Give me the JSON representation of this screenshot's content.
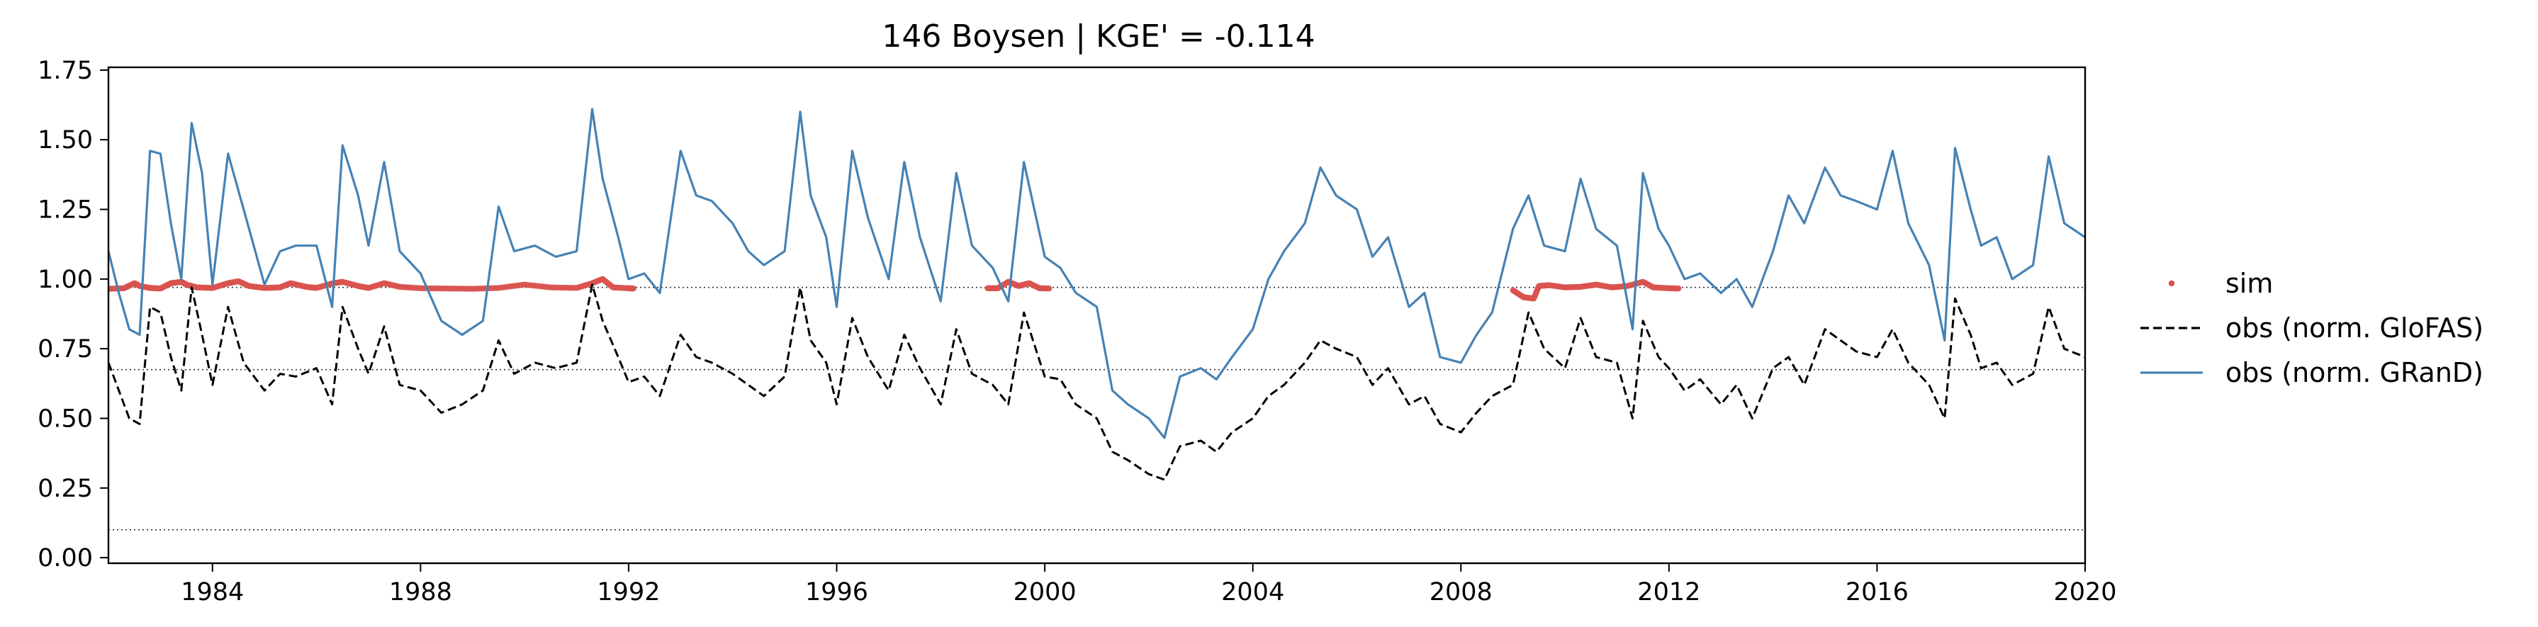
{
  "chart_data": {
    "type": "line",
    "title": "146  Boysen | KGE' = -0.114",
    "xlabel": "",
    "ylabel": "",
    "xlim": [
      1982.0,
      2020.0
    ],
    "ylim": [
      -0.02,
      1.76
    ],
    "x_ticks": [
      1984,
      1988,
      1992,
      1996,
      2000,
      2004,
      2008,
      2012,
      2016,
      2020
    ],
    "y_ticks": [
      0.0,
      0.25,
      0.5,
      0.75,
      1.0,
      1.25,
      1.5,
      1.75
    ],
    "y_tick_labels": [
      "0.00",
      "0.25",
      "0.50",
      "0.75",
      "1.00",
      "1.25",
      "1.50",
      "1.75"
    ],
    "grid": false,
    "legend_position": "right",
    "reference_lines": [
      0.97,
      0.675,
      0.1
    ],
    "series": [
      {
        "name": "sim",
        "kind": "scatter",
        "color": "#d9534f",
        "segments": [
          {
            "x": [
              1982.0,
              1982.3,
              1982.5,
              1982.6,
              1982.8,
              1983.0,
              1983.2,
              1983.4,
              1983.5,
              1983.7,
              1984.0,
              1984.3,
              1984.5,
              1984.7,
              1985.0,
              1985.3,
              1985.5,
              1985.8,
              1986.0,
              1986.3,
              1986.5,
              1986.8,
              1987.0,
              1987.3,
              1987.6,
              1988.0,
              1988.5,
              1989.0,
              1989.5,
              1990.0,
              1990.5,
              1991.0,
              1991.3,
              1991.5,
              1991.7,
              1992.0,
              1992.1
            ],
            "y": [
              0.965,
              0.967,
              0.985,
              0.975,
              0.968,
              0.966,
              0.985,
              0.99,
              0.98,
              0.97,
              0.968,
              0.985,
              0.992,
              0.975,
              0.968,
              0.97,
              0.985,
              0.972,
              0.968,
              0.984,
              0.99,
              0.975,
              0.968,
              0.985,
              0.972,
              0.967,
              0.966,
              0.965,
              0.968,
              0.98,
              0.97,
              0.968,
              0.985,
              1.0,
              0.97,
              0.967,
              0.966
            ]
          },
          {
            "x": [
              1998.9,
              1999.1,
              1999.3,
              1999.5,
              1999.7,
              1999.9,
              2000.1
            ],
            "y": [
              0.967,
              0.967,
              0.99,
              0.975,
              0.985,
              0.967,
              0.966
            ]
          },
          {
            "x": [
              2009.0,
              2009.2,
              2009.4,
              2009.5,
              2009.7,
              2010.0,
              2010.3,
              2010.6,
              2010.9,
              2011.2,
              2011.5,
              2011.7,
              2012.0,
              2012.2
            ],
            "y": [
              0.96,
              0.935,
              0.93,
              0.975,
              0.978,
              0.97,
              0.972,
              0.98,
              0.97,
              0.975,
              0.99,
              0.97,
              0.967,
              0.966
            ]
          }
        ]
      },
      {
        "name": "obs (norm. GloFAS)",
        "kind": "dashed-line",
        "color": "#000000",
        "x": [
          1982.0,
          1982.2,
          1982.4,
          1982.6,
          1982.8,
          1983.0,
          1983.2,
          1983.4,
          1983.6,
          1983.8,
          1984.0,
          1984.3,
          1984.6,
          1985.0,
          1985.3,
          1985.6,
          1986.0,
          1986.3,
          1986.5,
          1986.8,
          1987.0,
          1987.3,
          1987.6,
          1988.0,
          1988.4,
          1988.8,
          1989.2,
          1989.5,
          1989.8,
          1990.2,
          1990.6,
          1991.0,
          1991.3,
          1991.5,
          1991.8,
          1992.0,
          1992.3,
          1992.6,
          1993.0,
          1993.3,
          1993.6,
          1994.0,
          1994.3,
          1994.6,
          1995.0,
          1995.3,
          1995.5,
          1995.8,
          1996.0,
          1996.3,
          1996.6,
          1997.0,
          1997.3,
          1997.6,
          1998.0,
          1998.3,
          1998.6,
          1999.0,
          1999.3,
          1999.6,
          2000.0,
          2000.3,
          2000.6,
          2001.0,
          2001.3,
          2001.6,
          2002.0,
          2002.3,
          2002.6,
          2003.0,
          2003.3,
          2003.6,
          2004.0,
          2004.3,
          2004.6,
          2005.0,
          2005.3,
          2005.6,
          2006.0,
          2006.3,
          2006.6,
          2007.0,
          2007.3,
          2007.6,
          2008.0,
          2008.3,
          2008.6,
          2009.0,
          2009.3,
          2009.6,
          2010.0,
          2010.3,
          2010.6,
          2011.0,
          2011.3,
          2011.5,
          2011.8,
          2012.0,
          2012.3,
          2012.6,
          2013.0,
          2013.3,
          2013.6,
          2014.0,
          2014.3,
          2014.6,
          2015.0,
          2015.3,
          2015.6,
          2016.0,
          2016.3,
          2016.6,
          2017.0,
          2017.3,
          2017.5,
          2017.8,
          2018.0,
          2018.3,
          2018.6,
          2019.0,
          2019.3,
          2019.6,
          2020.0
        ],
        "y": [
          0.7,
          0.6,
          0.5,
          0.48,
          0.9,
          0.88,
          0.72,
          0.6,
          0.97,
          0.8,
          0.62,
          0.9,
          0.7,
          0.6,
          0.66,
          0.65,
          0.68,
          0.55,
          0.9,
          0.75,
          0.66,
          0.83,
          0.62,
          0.6,
          0.52,
          0.55,
          0.6,
          0.78,
          0.66,
          0.7,
          0.68,
          0.7,
          0.98,
          0.85,
          0.72,
          0.63,
          0.65,
          0.58,
          0.8,
          0.72,
          0.7,
          0.66,
          0.62,
          0.58,
          0.65,
          0.97,
          0.78,
          0.7,
          0.55,
          0.86,
          0.72,
          0.6,
          0.8,
          0.68,
          0.55,
          0.82,
          0.66,
          0.62,
          0.55,
          0.88,
          0.65,
          0.64,
          0.55,
          0.5,
          0.38,
          0.35,
          0.3,
          0.28,
          0.4,
          0.42,
          0.38,
          0.45,
          0.5,
          0.58,
          0.62,
          0.7,
          0.78,
          0.75,
          0.72,
          0.62,
          0.68,
          0.55,
          0.58,
          0.48,
          0.45,
          0.52,
          0.58,
          0.62,
          0.88,
          0.75,
          0.68,
          0.86,
          0.72,
          0.7,
          0.5,
          0.85,
          0.72,
          0.68,
          0.6,
          0.64,
          0.55,
          0.62,
          0.5,
          0.68,
          0.72,
          0.62,
          0.82,
          0.78,
          0.74,
          0.72,
          0.82,
          0.7,
          0.62,
          0.5,
          0.93,
          0.8,
          0.68,
          0.7,
          0.62,
          0.66,
          0.9,
          0.75,
          0.72
        ]
      },
      {
        "name": "obs (norm. GRanD)",
        "kind": "line",
        "color": "#4682b4",
        "x": [
          1982.0,
          1982.2,
          1982.4,
          1982.6,
          1982.8,
          1983.0,
          1983.2,
          1983.4,
          1983.6,
          1983.8,
          1984.0,
          1984.3,
          1984.6,
          1985.0,
          1985.3,
          1985.6,
          1986.0,
          1986.3,
          1986.5,
          1986.8,
          1987.0,
          1987.3,
          1987.6,
          1988.0,
          1988.4,
          1988.8,
          1989.2,
          1989.5,
          1989.8,
          1990.2,
          1990.6,
          1991.0,
          1991.3,
          1991.5,
          1991.8,
          1992.0,
          1992.3,
          1992.6,
          1993.0,
          1993.3,
          1993.6,
          1994.0,
          1994.3,
          1994.6,
          1995.0,
          1995.3,
          1995.5,
          1995.8,
          1996.0,
          1996.3,
          1996.6,
          1997.0,
          1997.3,
          1997.6,
          1998.0,
          1998.3,
          1998.6,
          1999.0,
          1999.3,
          1999.6,
          2000.0,
          2000.3,
          2000.6,
          2001.0,
          2001.3,
          2001.6,
          2002.0,
          2002.3,
          2002.6,
          2003.0,
          2003.3,
          2003.6,
          2004.0,
          2004.3,
          2004.6,
          2005.0,
          2005.3,
          2005.6,
          2006.0,
          2006.3,
          2006.6,
          2007.0,
          2007.3,
          2007.6,
          2008.0,
          2008.3,
          2008.6,
          2009.0,
          2009.3,
          2009.6,
          2010.0,
          2010.3,
          2010.6,
          2011.0,
          2011.3,
          2011.5,
          2011.8,
          2012.0,
          2012.3,
          2012.6,
          2013.0,
          2013.3,
          2013.6,
          2014.0,
          2014.3,
          2014.6,
          2015.0,
          2015.3,
          2015.6,
          2016.0,
          2016.3,
          2016.6,
          2017.0,
          2017.3,
          2017.5,
          2017.8,
          2018.0,
          2018.3,
          2018.6,
          2019.0,
          2019.3,
          2019.6,
          2020.0
        ],
        "y": [
          1.1,
          0.95,
          0.82,
          0.8,
          1.46,
          1.45,
          1.2,
          1.0,
          1.56,
          1.38,
          0.98,
          1.45,
          1.25,
          0.98,
          1.1,
          1.12,
          1.12,
          0.9,
          1.48,
          1.3,
          1.12,
          1.42,
          1.1,
          1.02,
          0.85,
          0.8,
          0.85,
          1.26,
          1.1,
          1.12,
          1.08,
          1.1,
          1.61,
          1.36,
          1.15,
          1.0,
          1.02,
          0.95,
          1.46,
          1.3,
          1.28,
          1.2,
          1.1,
          1.05,
          1.1,
          1.6,
          1.3,
          1.15,
          0.9,
          1.46,
          1.22,
          1.0,
          1.42,
          1.15,
          0.92,
          1.38,
          1.12,
          1.04,
          0.92,
          1.42,
          1.08,
          1.04,
          0.95,
          0.9,
          0.6,
          0.55,
          0.5,
          0.43,
          0.65,
          0.68,
          0.64,
          0.72,
          0.82,
          1.0,
          1.1,
          1.2,
          1.4,
          1.3,
          1.25,
          1.08,
          1.15,
          0.9,
          0.95,
          0.72,
          0.7,
          0.8,
          0.88,
          1.18,
          1.3,
          1.12,
          1.1,
          1.36,
          1.18,
          1.12,
          0.82,
          1.38,
          1.18,
          1.12,
          1.0,
          1.02,
          0.95,
          1.0,
          0.9,
          1.1,
          1.3,
          1.2,
          1.4,
          1.3,
          1.28,
          1.25,
          1.46,
          1.2,
          1.05,
          0.78,
          1.47,
          1.25,
          1.12,
          1.15,
          1.0,
          1.05,
          1.44,
          1.2,
          1.15
        ]
      }
    ]
  }
}
